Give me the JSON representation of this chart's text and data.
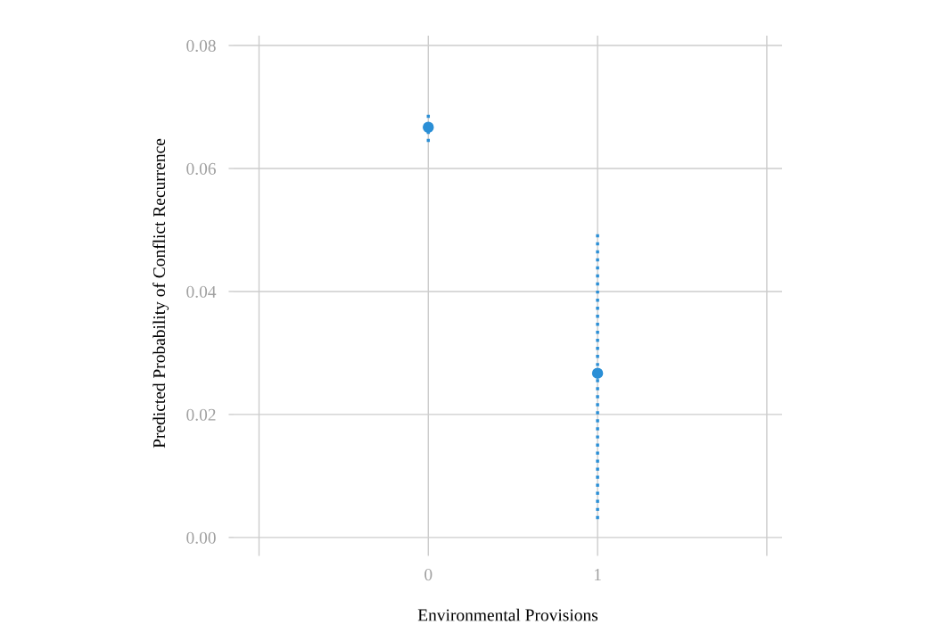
{
  "chart_data": {
    "type": "scatter",
    "xlabel": "Environmental Provisions",
    "ylabel": "Predicted Probability of Conflict Recurrence",
    "x": [
      0,
      1
    ],
    "values": [
      0.0667,
      0.0267
    ],
    "errors": [
      [
        0.0643,
        0.0688
      ],
      [
        0.003,
        0.0501
      ]
    ],
    "color": "#2b8fd6",
    "marker": "circle",
    "line_style": "dotted",
    "xlim": [
      -1.15,
      2.09
    ],
    "xticks": [
      {
        "value": -1,
        "label": null
      },
      0,
      1,
      {
        "value": 2,
        "label": null
      }
    ],
    "ylim": [
      -0.0022,
      0.0816
    ],
    "yticks": [
      {
        "value": 0,
        "label": "0.00"
      },
      {
        "value": 0.02,
        "label": "0.02"
      },
      {
        "value": 0.04,
        "label": "0.04"
      },
      {
        "value": 0.06,
        "label": "0.06"
      },
      {
        "value": 0.08,
        "label": "0.08"
      }
    ],
    "grid": true
  }
}
